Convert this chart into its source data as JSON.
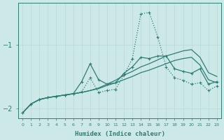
{
  "xlabel": "Humidex (Indice chaleur)",
  "bg_color": "#cce9e7",
  "grid_color": "#b8d8d5",
  "line_color": "#2e7d72",
  "x": [
    0,
    1,
    2,
    3,
    4,
    5,
    6,
    7,
    8,
    9,
    10,
    11,
    12,
    13,
    14,
    15,
    16,
    17,
    18,
    19,
    20,
    21,
    22,
    23
  ],
  "line_dotted": [
    -2.07,
    -1.93,
    -1.86,
    -1.83,
    -1.81,
    -1.79,
    -1.77,
    -1.74,
    -1.52,
    -1.75,
    -1.72,
    -1.7,
    -1.48,
    -1.22,
    -0.52,
    -0.5,
    -0.88,
    -1.35,
    -1.52,
    -1.56,
    -1.62,
    -1.6,
    -1.72,
    -1.65
  ],
  "line_marked": [
    -2.07,
    -1.93,
    -1.86,
    -1.83,
    -1.81,
    -1.79,
    -1.77,
    -1.58,
    -1.3,
    -1.55,
    -1.62,
    -1.6,
    -1.45,
    -1.35,
    -1.2,
    -1.22,
    -1.18,
    -1.18,
    -1.38,
    -1.42,
    -1.45,
    -1.38,
    -1.62,
    -1.58
  ],
  "line_smooth1": [
    -2.07,
    -1.93,
    -1.86,
    -1.83,
    -1.81,
    -1.79,
    -1.77,
    -1.75,
    -1.72,
    -1.69,
    -1.64,
    -1.6,
    -1.55,
    -1.5,
    -1.44,
    -1.4,
    -1.35,
    -1.3,
    -1.25,
    -1.22,
    -1.2,
    -1.32,
    -1.55,
    -1.6
  ],
  "line_smooth2": [
    -2.07,
    -1.93,
    -1.86,
    -1.83,
    -1.81,
    -1.79,
    -1.77,
    -1.75,
    -1.72,
    -1.68,
    -1.62,
    -1.56,
    -1.48,
    -1.42,
    -1.35,
    -1.3,
    -1.24,
    -1.18,
    -1.14,
    -1.1,
    -1.08,
    -1.2,
    -1.44,
    -1.5
  ],
  "yticks": [
    -2,
    -1
  ],
  "xlim": [
    -0.5,
    23.5
  ],
  "ylim": [
    -2.15,
    -0.35
  ]
}
